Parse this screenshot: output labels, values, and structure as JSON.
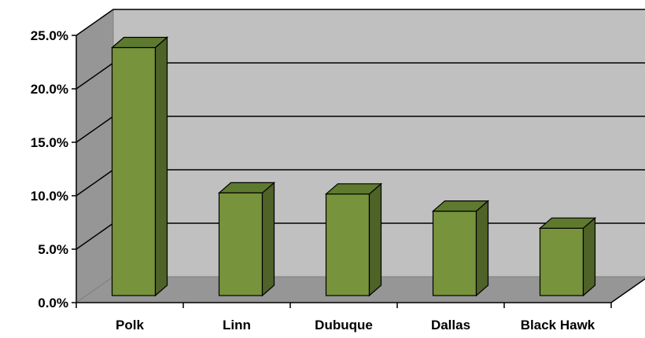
{
  "chart_data": {
    "type": "bar",
    "title": "",
    "xlabel": "",
    "ylabel": "",
    "categories": [
      "Polk",
      "Linn",
      "Dubuque",
      "Dallas",
      "Black Hawk"
    ],
    "values": [
      23.2,
      9.6,
      9.5,
      7.9,
      6.3
    ],
    "ylim": [
      0,
      25
    ],
    "y_ticks": [
      "0.0%",
      "5.0%",
      "10.0%",
      "15.0%",
      "20.0%",
      "25.0%"
    ],
    "grid": true,
    "style": "3d-column",
    "colors": {
      "bar_front": "#77933c",
      "bar_side": "#4f6228",
      "bar_top": "#5e7a2e",
      "back_wall": "#c0c0c0",
      "side_wall": "#969696",
      "floor": "#969696",
      "gridline": "#000000"
    }
  }
}
